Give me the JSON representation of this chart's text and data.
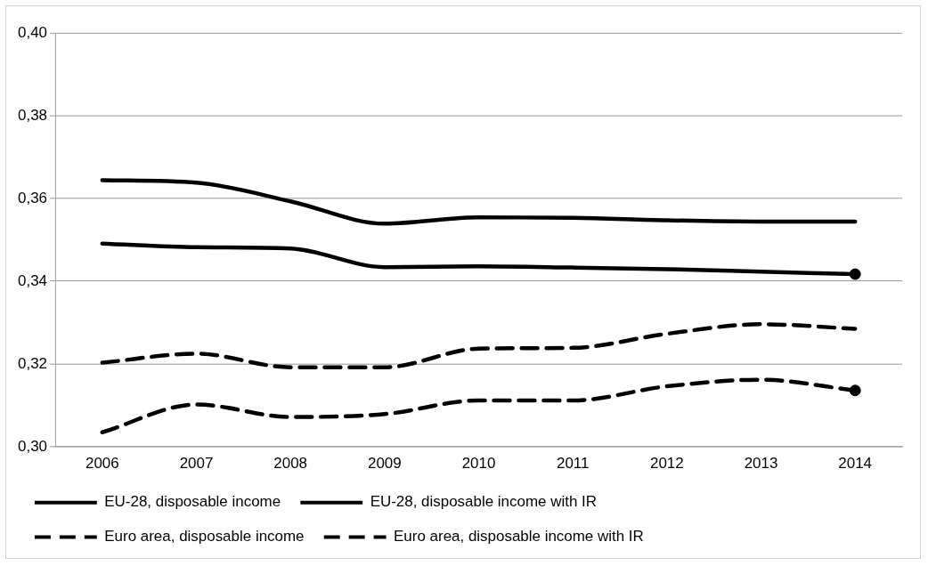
{
  "chart_data": {
    "type": "line",
    "categories": [
      "2006",
      "2007",
      "2008",
      "2009",
      "2010",
      "2011",
      "2012",
      "2013",
      "2014"
    ],
    "series": [
      {
        "name": "EU-28, disposable income",
        "color": "#000000",
        "line_style": "solid",
        "marker": "none",
        "values": [
          0.3644,
          0.3638,
          0.3593,
          0.3539,
          0.3554,
          0.3553,
          0.3547,
          0.3544,
          0.3544
        ]
      },
      {
        "name": "EU-28, disposable income with IR",
        "color": "#000000",
        "line_style": "solid",
        "marker": "none",
        "values": [
          0.3491,
          0.3482,
          0.3479,
          0.3434,
          0.3436,
          0.3433,
          0.3429,
          0.3423,
          0.3417
        ]
      },
      {
        "name": "Euro area, disposable income",
        "color": "#000000",
        "line_style": "dashed",
        "marker": "none",
        "values": [
          0.3203,
          0.3225,
          0.3192,
          0.3192,
          0.3237,
          0.3239,
          0.3273,
          0.3296,
          0.3285
        ]
      },
      {
        "name": "Euro area, disposable income with IR",
        "color": "#000000",
        "line_style": "dashed",
        "marker": "none",
        "values": [
          0.3035,
          0.3102,
          0.3072,
          0.3079,
          0.3112,
          0.3112,
          0.3146,
          0.3162,
          0.3136
        ]
      },
      {
        "type": "scatter",
        "color": "#000000",
        "marker": "circle",
        "values": [
          null,
          null,
          null,
          null,
          null,
          null,
          null,
          null,
          0.3417
        ]
      },
      {
        "type": "scatter",
        "color": "#000000",
        "marker": "circle",
        "values": [
          null,
          null,
          null,
          null,
          null,
          null,
          null,
          null,
          0.3136
        ]
      }
    ],
    "ylim": [
      0.3,
      0.4
    ],
    "yticks": [
      {
        "value": 0.3,
        "label": "0,30"
      },
      {
        "value": 0.32,
        "label": "0,32"
      },
      {
        "value": 0.34,
        "label": "0,34"
      },
      {
        "value": 0.36,
        "label": "0,36"
      },
      {
        "value": 0.38,
        "label": "0,38"
      },
      {
        "value": 0.4,
        "label": "0,40"
      }
    ],
    "grid": "y",
    "legend": "bottom"
  }
}
